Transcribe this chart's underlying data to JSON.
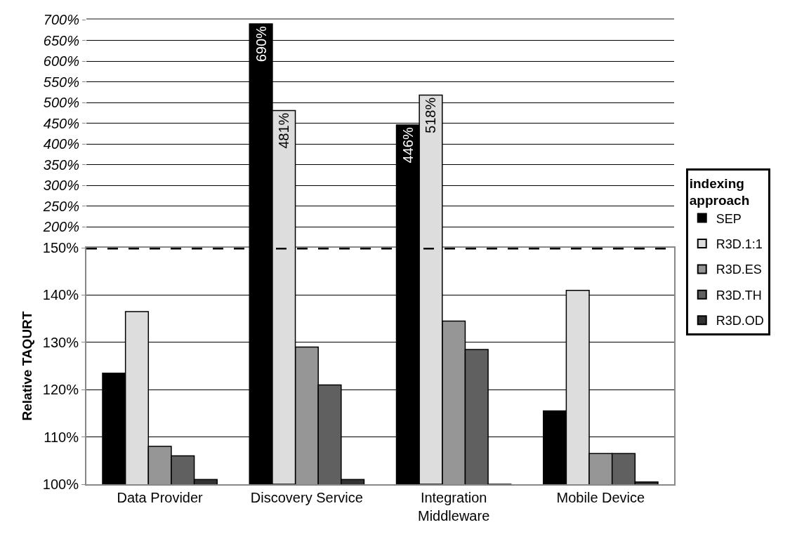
{
  "chart_data": [
    {
      "type": "bar",
      "categories": [
        "Data Provider",
        "Discovery Service",
        "Integration Middleware",
        "Mobile Device"
      ],
      "ylim": [
        150,
        700
      ],
      "yticks": [
        {
          "value": 200,
          "label": "200%"
        },
        {
          "value": 250,
          "label": "250%"
        },
        {
          "value": 300,
          "label": "300%"
        },
        {
          "value": 350,
          "label": "350%"
        },
        {
          "value": 400,
          "label": "400%"
        },
        {
          "value": 450,
          "label": "450%"
        },
        {
          "value": 500,
          "label": "500%"
        },
        {
          "value": 550,
          "label": "550%"
        },
        {
          "value": 600,
          "label": "600%"
        },
        {
          "value": 650,
          "label": "650%"
        },
        {
          "value": 700,
          "label": "700%"
        }
      ],
      "grid": "y",
      "tick_labels": "y",
      "series": [
        {
          "color": "#000000",
          "values": [
            null,
            690,
            446,
            null
          ],
          "value_labels": [
            null,
            "690%",
            "446%",
            null
          ]
        },
        {
          "color": "#dddddd",
          "values": [
            null,
            481,
            518,
            null
          ],
          "value_labels": [
            null,
            "481%",
            "518%",
            null
          ]
        },
        {
          "color": "#969696",
          "values": [
            null,
            null,
            null,
            null
          ]
        },
        {
          "color": "#606060",
          "values": [
            null,
            null,
            null,
            null
          ]
        },
        {
          "color": "#333333",
          "values": [
            null,
            null,
            null,
            null
          ]
        }
      ]
    },
    {
      "type": "bar",
      "categories": [
        "Data Provider",
        "Discovery Service",
        "Integration Middleware",
        "Mobile Device"
      ],
      "ylabel": "Relative TAQURT",
      "ylim": [
        100,
        150
      ],
      "yticks": [
        {
          "value": 100,
          "label": "100%"
        },
        {
          "value": 110,
          "label": "110%"
        },
        {
          "value": 120,
          "label": "120%"
        },
        {
          "value": 130,
          "label": "130%"
        },
        {
          "value": 140,
          "label": "140%"
        },
        {
          "value": 150,
          "label": "150%"
        }
      ],
      "grid": "y",
      "legend": "right",
      "legend_title": "indexing approach",
      "ref_lines": [
        {
          "axis": "y",
          "value": 150,
          "color": "#000000",
          "line_style": "dashed"
        }
      ],
      "series": [
        {
          "name": "SEP",
          "color": "#000000",
          "values": [
            123.5,
            null,
            null,
            115.5
          ]
        },
        {
          "name": "R3D.1:1",
          "color": "#dddddd",
          "values": [
            136.5,
            null,
            null,
            141
          ]
        },
        {
          "name": "R3D.ES",
          "color": "#969696",
          "values": [
            108,
            129,
            134.5,
            106.5
          ]
        },
        {
          "name": "R3D.TH",
          "color": "#606060",
          "values": [
            106,
            121,
            128.5,
            106.5
          ]
        },
        {
          "name": "R3D.OD",
          "color": "#333333",
          "values": [
            101,
            101,
            100,
            100.5
          ]
        }
      ]
    }
  ]
}
